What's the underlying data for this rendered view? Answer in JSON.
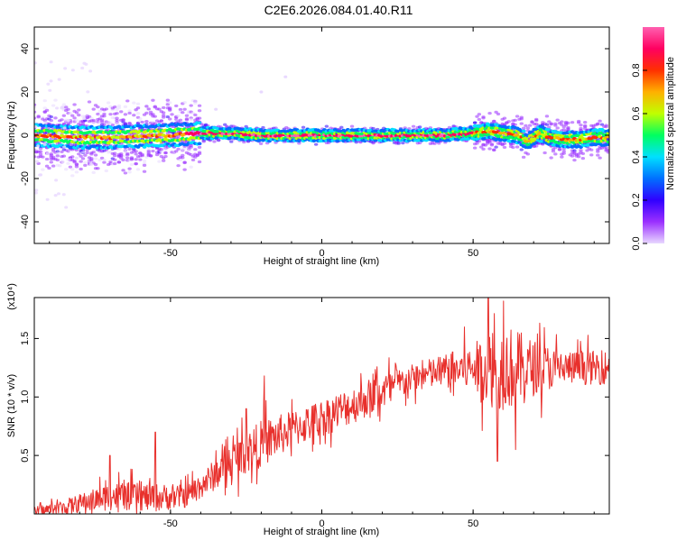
{
  "title": "C2E6.2026.084.01.40.R11",
  "chart_data": [
    {
      "type": "heatmap",
      "description_role": "spectrogram",
      "xlabel": "Height of straight line (km)",
      "ylabel": "Frequency (Hz)",
      "xlim": [
        -95,
        95
      ],
      "ylim": [
        -50,
        50
      ],
      "xticks": [
        -50,
        0,
        50
      ],
      "yticks": [
        -40,
        -20,
        0,
        20,
        40
      ],
      "colorbar": {
        "label": "Normalized spectral amplitude",
        "range": [
          0,
          1
        ],
        "ticks": [
          "0.0",
          "0.2",
          "0.4",
          "0.6",
          "0.8"
        ],
        "colormap": [
          "#e8d8ff",
          "#9b30ff",
          "#3000ff",
          "#0070ff",
          "#00e0ff",
          "#00ff60",
          "#c0ff00",
          "#ffb000",
          "#ff3000",
          "#ff0060",
          "#ff60b0"
        ]
      },
      "ridge_frequency_hz": [
        {
          "x": -95,
          "f": 0
        },
        {
          "x": -80,
          "f": -1
        },
        {
          "x": -70,
          "f": -1
        },
        {
          "x": -60,
          "f": -0.5
        },
        {
          "x": -50,
          "f": 0
        },
        {
          "x": -40,
          "f": 1
        },
        {
          "x": -30,
          "f": 1
        },
        {
          "x": -20,
          "f": 0
        },
        {
          "x": 0,
          "f": 0
        },
        {
          "x": 20,
          "f": 0
        },
        {
          "x": 40,
          "f": 0
        },
        {
          "x": 50,
          "f": 1
        },
        {
          "x": 55,
          "f": 2
        },
        {
          "x": 60,
          "f": 1
        },
        {
          "x": 65,
          "f": 0
        },
        {
          "x": 68,
          "f": -3
        },
        {
          "x": 72,
          "f": 1
        },
        {
          "x": 75,
          "f": -1
        },
        {
          "x": 80,
          "f": -2
        },
        {
          "x": 85,
          "f": -2
        },
        {
          "x": 90,
          "f": -1
        },
        {
          "x": 95,
          "f": -1
        }
      ]
    },
    {
      "type": "line",
      "xlabel": "Height of straight line (km)",
      "ylabel": "SNR (10 * v/v)",
      "y_multiplier": "(x10⁴)",
      "xlim": [
        -95,
        95
      ],
      "ylim": [
        0,
        1.85
      ],
      "xticks": [
        -50,
        0,
        50
      ],
      "yticks": [
        "0.5",
        "1.0",
        "1.5"
      ],
      "color": "#e8302c",
      "series": [
        {
          "name": "SNR",
          "envelope": [
            {
              "x": -95,
              "base": 0.02,
              "amp": 0.05
            },
            {
              "x": -85,
              "base": 0.06,
              "amp": 0.08
            },
            {
              "x": -75,
              "base": 0.12,
              "amp": 0.12
            },
            {
              "x": -70,
              "base": 0.15,
              "amp": 0.15
            },
            {
              "x": -65,
              "base": 0.15,
              "amp": 0.15
            },
            {
              "x": -55,
              "base": 0.14,
              "amp": 0.15
            },
            {
              "x": -45,
              "base": 0.15,
              "amp": 0.12
            },
            {
              "x": -38,
              "base": 0.28,
              "amp": 0.15
            },
            {
              "x": -30,
              "base": 0.45,
              "amp": 0.2
            },
            {
              "x": -20,
              "base": 0.6,
              "amp": 0.25
            },
            {
              "x": -10,
              "base": 0.72,
              "amp": 0.2
            },
            {
              "x": 0,
              "base": 0.82,
              "amp": 0.2
            },
            {
              "x": 10,
              "base": 0.93,
              "amp": 0.2
            },
            {
              "x": 20,
              "base": 1.05,
              "amp": 0.2
            },
            {
              "x": 30,
              "base": 1.16,
              "amp": 0.15
            },
            {
              "x": 40,
              "base": 1.22,
              "amp": 0.18
            },
            {
              "x": 50,
              "base": 1.25,
              "amp": 0.25
            },
            {
              "x": 57,
              "base": 1.25,
              "amp": 0.45
            },
            {
              "x": 62,
              "base": 1.25,
              "amp": 0.45
            },
            {
              "x": 70,
              "base": 1.25,
              "amp": 0.3
            },
            {
              "x": 80,
              "base": 1.25,
              "amp": 0.18
            },
            {
              "x": 95,
              "base": 1.25,
              "amp": 0.18
            }
          ],
          "spikes": [
            {
              "x": -70,
              "y": 0.5
            },
            {
              "x": -55,
              "y": 0.7
            },
            {
              "x": -25,
              "y": 0.9
            },
            {
              "x": -19,
              "y": 1.18
            },
            {
              "x": 55,
              "y": 1.85
            },
            {
              "x": 60,
              "y": 1.82
            },
            {
              "x": 58,
              "y": 0.45
            },
            {
              "x": 64,
              "y": 0.55
            }
          ]
        }
      ]
    }
  ]
}
